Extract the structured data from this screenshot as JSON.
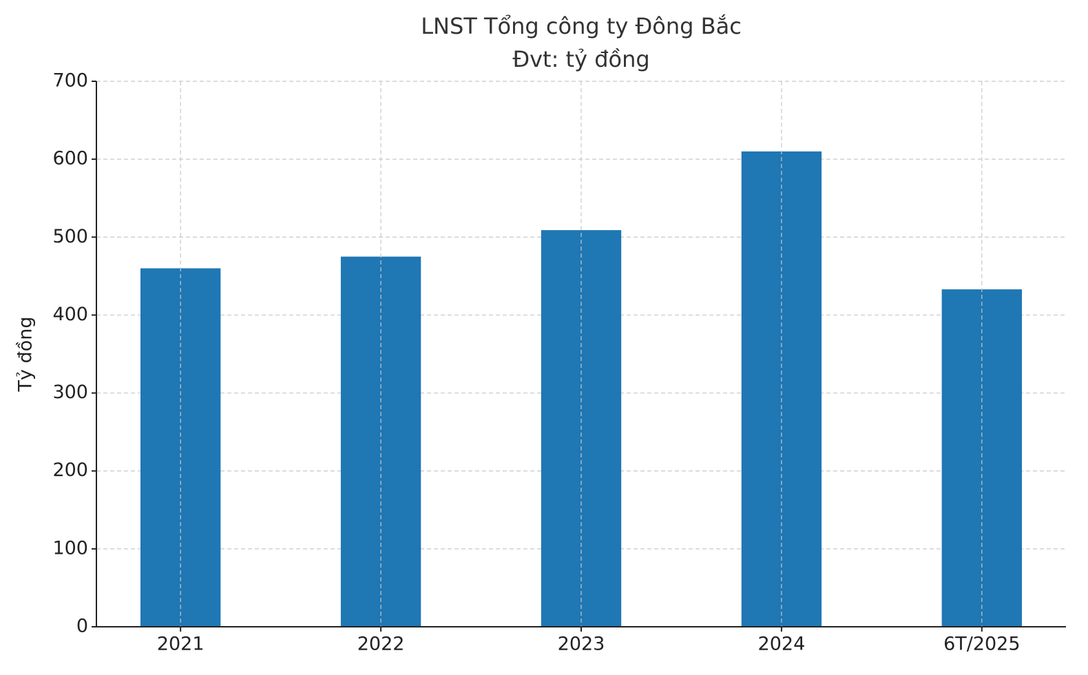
{
  "chart_data": {
    "type": "bar",
    "title": "LNST Tổng công ty Đông Bắc",
    "subtitle": "Đvt: tỷ đồng",
    "y_label": "Tỷ đồng",
    "categories": [
      "2021",
      "2022",
      "2023",
      "2024",
      "6T/2025"
    ],
    "values": [
      460,
      475,
      509,
      610,
      433
    ],
    "color": "#1f77b4",
    "ylim": [
      0,
      700
    ],
    "yticks": [
      0,
      100,
      200,
      300,
      400,
      500,
      600,
      700
    ],
    "grid": true
  }
}
